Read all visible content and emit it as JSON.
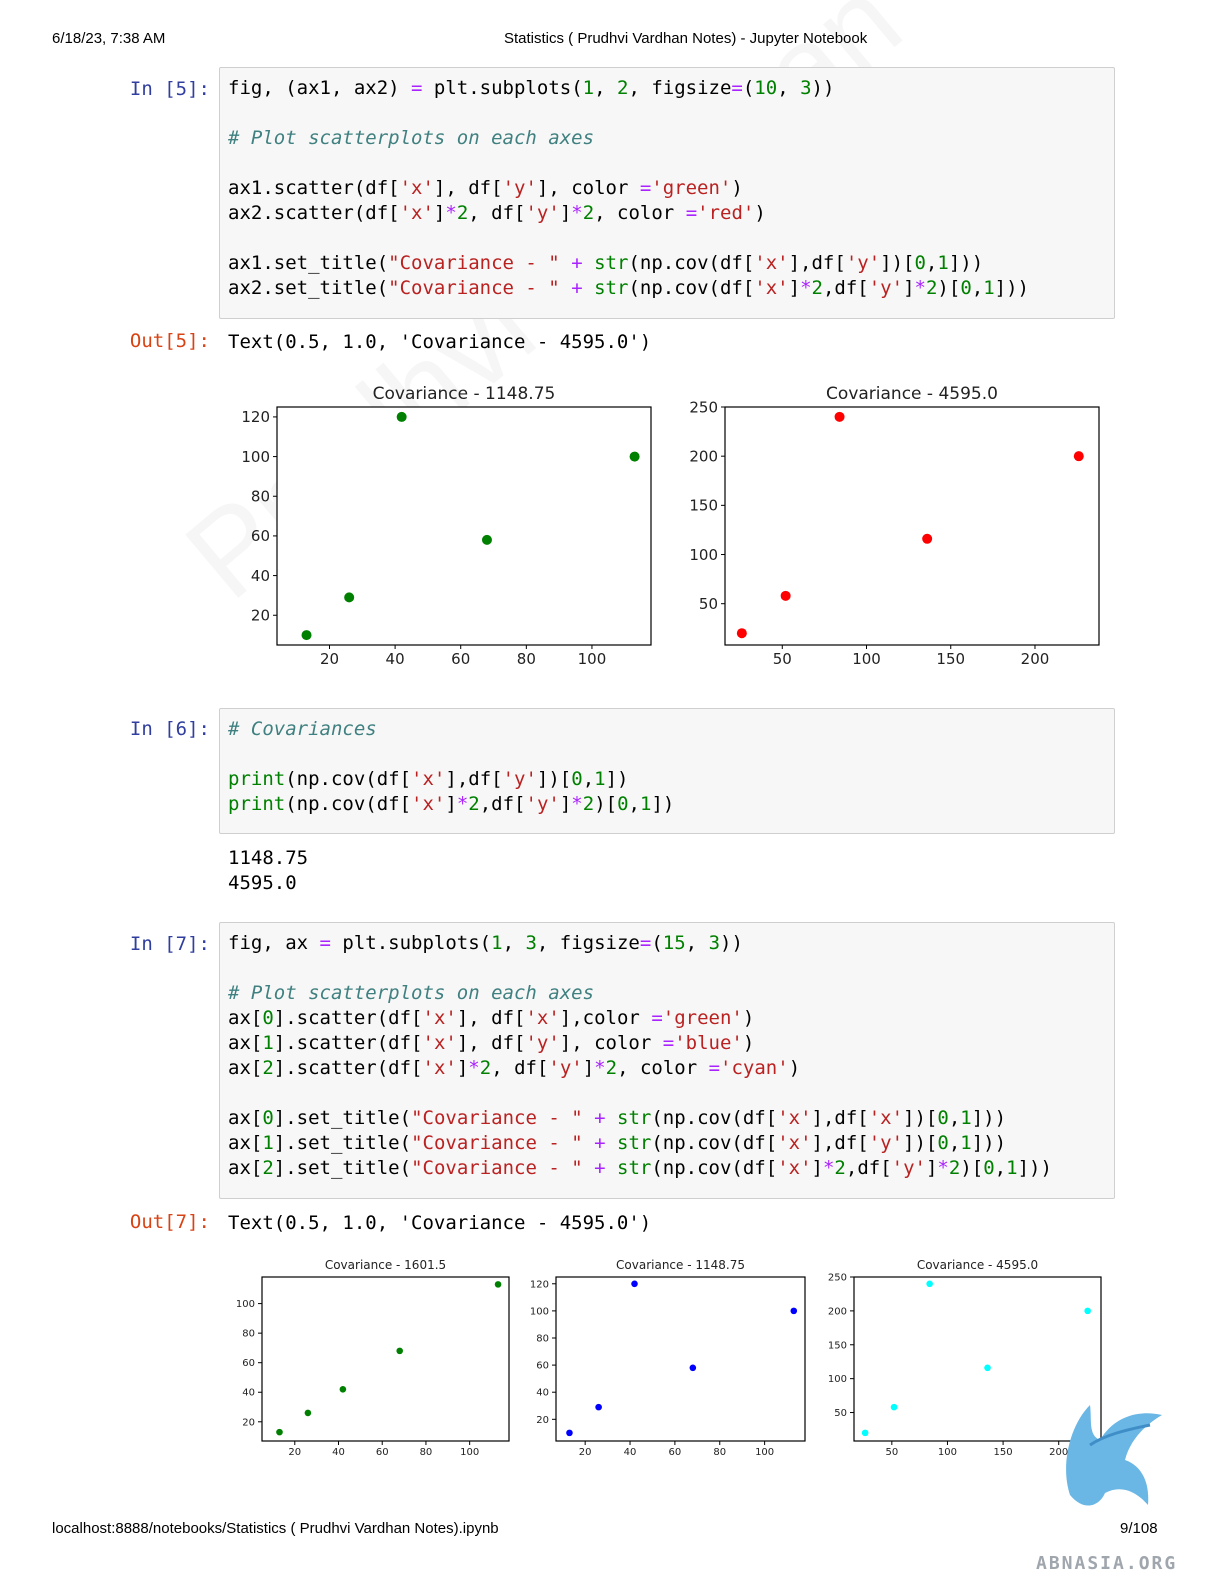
{
  "header": {
    "datetime": "6/18/23, 7:38 AM",
    "title": "Statistics ( Prudhvi Vardhan Notes) - Jupyter Notebook"
  },
  "footer": {
    "url": "localhost:8888/notebooks/Statistics ( Prudhvi Vardhan Notes).ipynb",
    "page": "9/108",
    "logo_text": "ABNASIA.ORG"
  },
  "watermark": "Prudhvi Vardhan",
  "cells": [
    {
      "prompt_in": "In [5]:",
      "prompt_out": "Out[5]:",
      "output_text": "Text(0.5, 1.0, 'Covariance - 4595.0')"
    },
    {
      "prompt_in": "In [6]:",
      "stdout": [
        "1148.75",
        "4595.0"
      ]
    },
    {
      "prompt_in": "In [7]:",
      "prompt_out": "Out[7]:",
      "output_text": "Text(0.5, 1.0, 'Covariance - 4595.0')"
    }
  ],
  "colors": {
    "green": "#008000",
    "red": "#ff0000",
    "blue": "#0000ff",
    "cyan": "#00ffff",
    "prompt_in": "#303f9f",
    "prompt_out": "#d84315"
  },
  "chart_data": [
    {
      "type": "scatter",
      "title": "Covariance - 1148.75",
      "x": [
        13,
        26,
        42,
        68,
        113
      ],
      "y": [
        10,
        29,
        120,
        58,
        100
      ],
      "color": "green",
      "xlim": [
        4,
        118
      ],
      "ylim": [
        5,
        125
      ],
      "xticks": [
        20,
        40,
        60,
        80,
        100
      ],
      "yticks": [
        20,
        40,
        60,
        80,
        100,
        120
      ]
    },
    {
      "type": "scatter",
      "title": "Covariance - 4595.0",
      "x": [
        26,
        52,
        84,
        136,
        226
      ],
      "y": [
        20,
        58,
        240,
        116,
        200
      ],
      "color": "red",
      "xlim": [
        16,
        238
      ],
      "ylim": [
        8,
        250
      ],
      "xticks": [
        50,
        100,
        150,
        200
      ],
      "yticks": [
        50,
        100,
        150,
        200,
        250
      ]
    },
    {
      "type": "scatter",
      "title": "Covariance - 1601.5",
      "x": [
        13,
        26,
        42,
        68,
        113
      ],
      "y": [
        13,
        26,
        42,
        68,
        113
      ],
      "color": "green",
      "xlim": [
        5,
        118
      ],
      "ylim": [
        7,
        118
      ],
      "xticks": [
        20,
        40,
        60,
        80,
        100
      ],
      "yticks": [
        20,
        40,
        60,
        80,
        100
      ]
    },
    {
      "type": "scatter",
      "title": "Covariance - 1148.75",
      "x": [
        13,
        26,
        42,
        68,
        113
      ],
      "y": [
        10,
        29,
        120,
        58,
        100
      ],
      "color": "blue",
      "xlim": [
        7,
        118
      ],
      "ylim": [
        4,
        125
      ],
      "xticks": [
        20,
        40,
        60,
        80,
        100
      ],
      "yticks": [
        20,
        40,
        60,
        80,
        100,
        120
      ]
    },
    {
      "type": "scatter",
      "title": "Covariance - 4595.0",
      "x": [
        26,
        52,
        84,
        136,
        226
      ],
      "y": [
        20,
        58,
        240,
        116,
        200
      ],
      "color": "cyan",
      "xlim": [
        16,
        238
      ],
      "ylim": [
        8,
        250
      ],
      "xticks": [
        50,
        100,
        150,
        200
      ],
      "yticks": [
        50,
        100,
        150,
        200,
        250
      ]
    }
  ]
}
